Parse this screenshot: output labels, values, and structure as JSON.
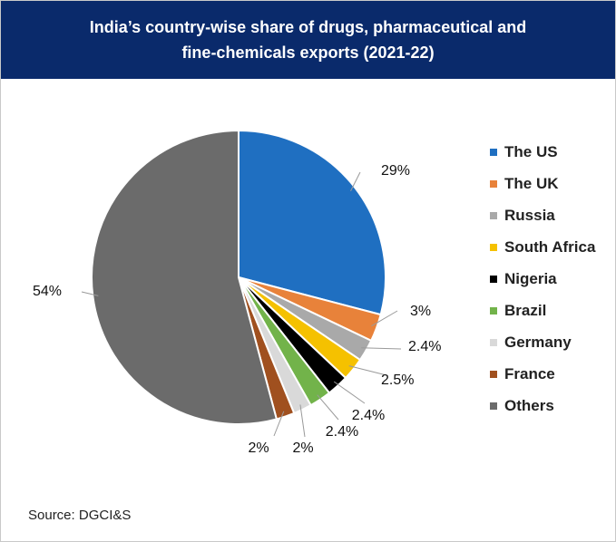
{
  "header": {
    "title_line1": "India’s country-wise share of drugs, pharmaceutical and",
    "title_line2": "fine-chemicals exports (2021-22)",
    "background": "#0a2a6b"
  },
  "source": "Source: DGCI&S",
  "chart_data": {
    "type": "pie",
    "title": "India’s country-wise share of drugs, pharmaceutical and fine-chemicals exports (2021-22)",
    "start_angle_deg": 0,
    "direction": "clockwise",
    "legend_position": "right",
    "slices": [
      {
        "name": "The US",
        "value": 29,
        "label": "29%",
        "color": "#1f6fc1"
      },
      {
        "name": "The UK",
        "value": 3,
        "label": "3%",
        "color": "#e8823a"
      },
      {
        "name": "Russia",
        "value": 2.4,
        "label": "2.4%",
        "color": "#a9a9a9"
      },
      {
        "name": "South Africa",
        "value": 2.5,
        "label": "2.5%",
        "color": "#f5c100"
      },
      {
        "name": "Nigeria",
        "value": 2.4,
        "label": "2.4%",
        "color": "#000000"
      },
      {
        "name": "Brazil",
        "value": 2.4,
        "label": "2.4%",
        "color": "#72b34a"
      },
      {
        "name": "Germany",
        "value": 2,
        "label": "2%",
        "color": "#d9d9d9"
      },
      {
        "name": "France",
        "value": 2,
        "label": "2%",
        "color": "#a0501f"
      },
      {
        "name": "Others",
        "value": 54,
        "label": "54%",
        "color": "#6b6b6b"
      }
    ]
  }
}
